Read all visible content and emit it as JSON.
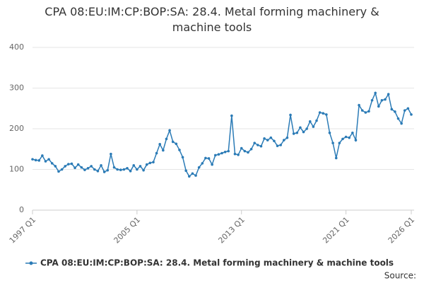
{
  "chart_data": {
    "type": "line",
    "title": "CPA 08:EU:IM:CP:BOP:SA: 28.4. Metal forming machinery & machine tools",
    "categories": [
      "1997 Q1",
      null,
      null,
      null,
      null,
      null,
      null,
      null,
      null,
      null,
      null,
      null,
      null,
      null,
      null,
      null,
      null,
      null,
      null,
      null,
      null,
      null,
      null,
      null,
      null,
      null,
      null,
      null,
      null,
      null,
      null,
      null,
      "2005 Q1",
      null,
      null,
      null,
      null,
      null,
      null,
      null,
      null,
      null,
      null,
      null,
      null,
      null,
      null,
      null,
      null,
      null,
      null,
      null,
      null,
      null,
      null,
      null,
      null,
      null,
      null,
      null,
      null,
      null,
      null,
      null,
      "2013 Q1",
      null,
      null,
      null,
      null,
      null,
      null,
      null,
      null,
      null,
      null,
      null,
      null,
      null,
      null,
      null,
      null,
      null,
      null,
      null,
      null,
      null,
      null,
      null,
      null,
      null,
      null,
      null,
      null,
      null,
      null,
      null,
      "2021 Q1",
      null,
      null,
      null,
      null,
      null,
      null,
      null,
      null,
      null,
      null,
      null,
      null,
      null,
      null,
      null,
      null,
      null,
      null,
      null,
      "2026 Q1"
    ],
    "series": [
      {
        "name": "CPA 08:EU:IM:CP:BOP:SA: 28.4. Metal forming machinery & machine tools",
        "color": "#2b7bb6",
        "values": [
          125,
          123,
          122,
          134,
          120,
          125,
          115,
          108,
          95,
          100,
          108,
          113,
          114,
          104,
          112,
          105,
          99,
          103,
          108,
          100,
          96,
          110,
          94,
          98,
          138,
          105,
          100,
          99,
          100,
          103,
          96,
          110,
          100,
          108,
          98,
          112,
          116,
          118,
          140,
          162,
          147,
          175,
          196,
          168,
          163,
          148,
          130,
          97,
          83,
          90,
          85,
          105,
          115,
          128,
          127,
          112,
          135,
          137,
          140,
          143,
          145,
          232,
          138,
          136,
          152,
          145,
          142,
          150,
          165,
          160,
          157,
          176,
          172,
          178,
          170,
          158,
          160,
          172,
          178,
          234,
          188,
          190,
          203,
          192,
          200,
          218,
          205,
          220,
          240,
          238,
          235,
          190,
          165,
          128,
          165,
          175,
          180,
          178,
          190,
          172,
          258,
          245,
          240,
          243,
          270,
          288,
          255,
          270,
          272,
          285,
          248,
          242,
          225,
          213,
          245,
          250,
          235
        ]
      }
    ],
    "ylim": [
      0,
      400
    ],
    "yticks": [
      0,
      100,
      200,
      300,
      400
    ],
    "grid": true,
    "source": "Source:"
  }
}
